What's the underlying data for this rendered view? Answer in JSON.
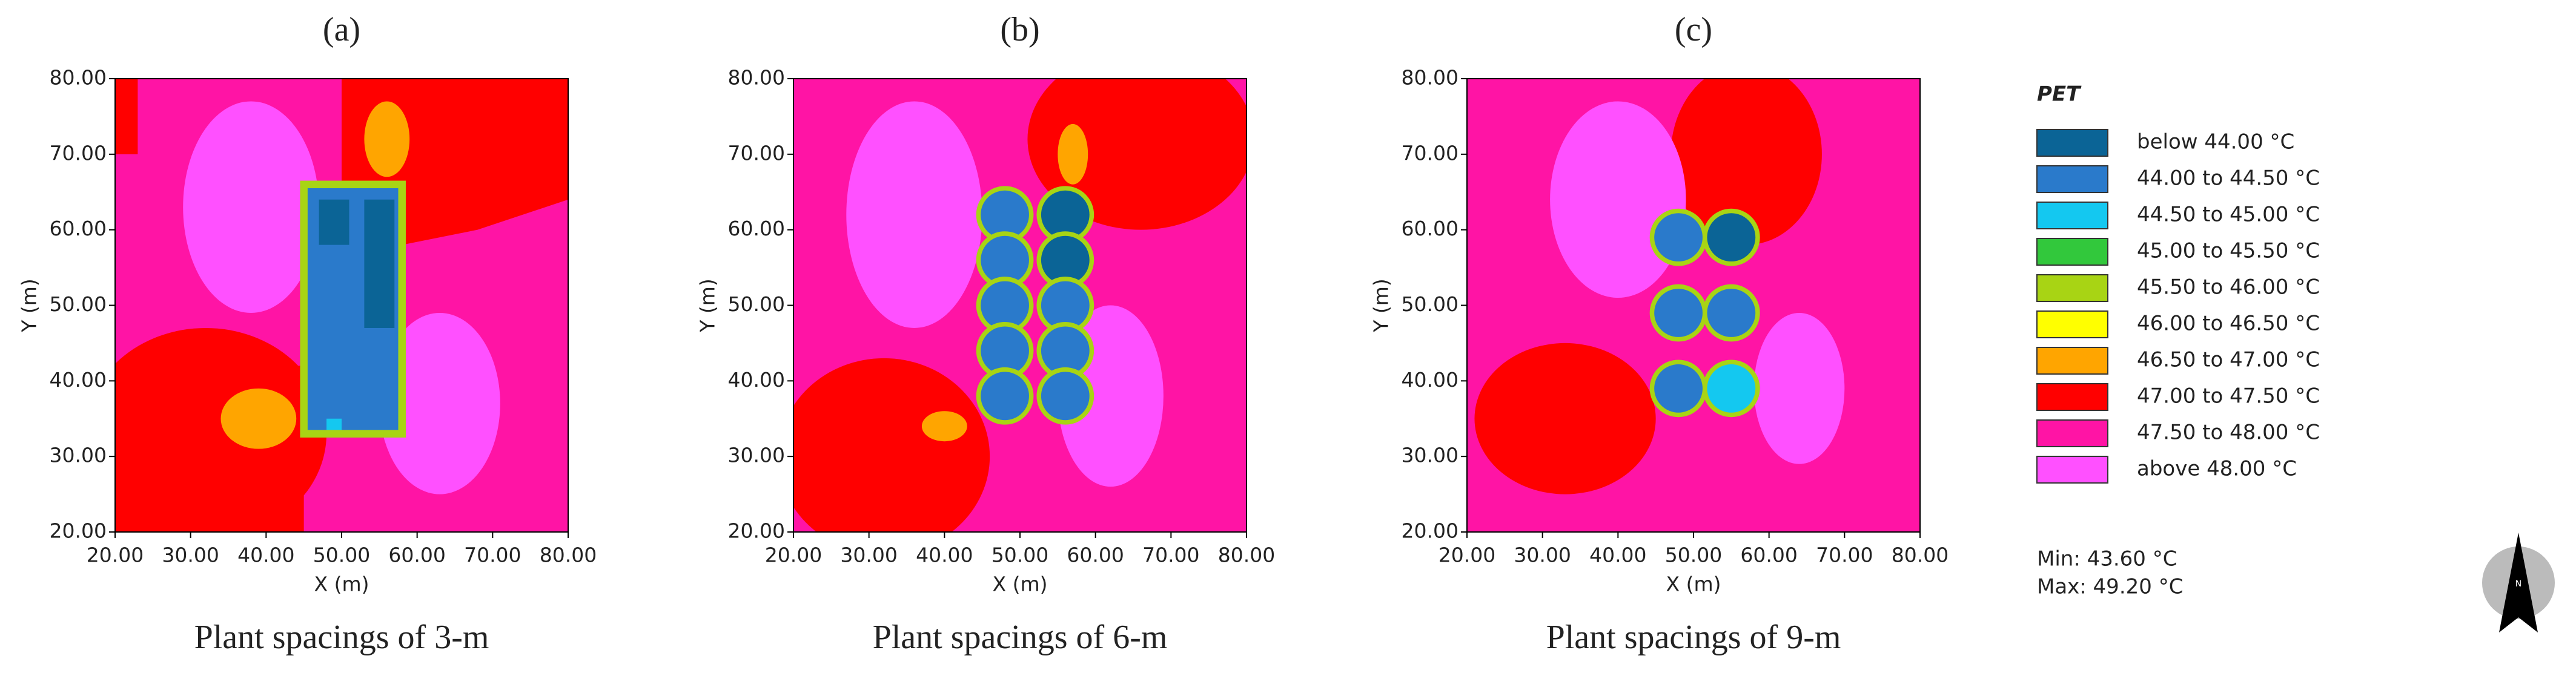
{
  "chart_data": [
    {
      "type": "heatmap",
      "title": "(a)",
      "caption": "Plant spacings of 3-m",
      "x_label": "X (m)",
      "y_label": "Y (m)",
      "xlim": [
        20,
        80
      ],
      "ylim": [
        20,
        80
      ],
      "xticks": [
        {
          "value": 20,
          "label": "20.00"
        },
        {
          "value": 30,
          "label": "30.00"
        },
        {
          "value": 40,
          "label": "40.00"
        },
        {
          "value": 50,
          "label": "50.00"
        },
        {
          "value": 60,
          "label": "60.00"
        },
        {
          "value": 70,
          "label": "70.00"
        },
        {
          "value": 80,
          "label": "80.00"
        }
      ],
      "yticks": [
        {
          "value": 20,
          "label": "20.00"
        },
        {
          "value": 30,
          "label": "30.00"
        },
        {
          "value": 40,
          "label": "40.00"
        },
        {
          "value": 50,
          "label": "50.00"
        },
        {
          "value": 60,
          "label": "60.00"
        },
        {
          "value": 70,
          "label": "70.00"
        },
        {
          "value": 80,
          "label": "80.00"
        }
      ]
    },
    {
      "type": "heatmap",
      "title": "(b)",
      "caption": "Plant spacings of 6-m",
      "x_label": "X (m)",
      "y_label": "Y (m)",
      "xlim": [
        20,
        80
      ],
      "ylim": [
        20,
        80
      ],
      "xticks": [
        {
          "value": 20,
          "label": "20.00"
        },
        {
          "value": 30,
          "label": "30.00"
        },
        {
          "value": 40,
          "label": "40.00"
        },
        {
          "value": 50,
          "label": "50.00"
        },
        {
          "value": 60,
          "label": "60.00"
        },
        {
          "value": 70,
          "label": "70.00"
        },
        {
          "value": 80,
          "label": "80.00"
        }
      ],
      "yticks": [
        {
          "value": 20,
          "label": "20.00"
        },
        {
          "value": 30,
          "label": "30.00"
        },
        {
          "value": 40,
          "label": "40.00"
        },
        {
          "value": 50,
          "label": "50.00"
        },
        {
          "value": 60,
          "label": "60.00"
        },
        {
          "value": 70,
          "label": "70.00"
        },
        {
          "value": 80,
          "label": "80.00"
        }
      ]
    },
    {
      "type": "heatmap",
      "title": "(c)",
      "caption": "Plant spacings of 9-m",
      "x_label": "X (m)",
      "y_label": "Y (m)",
      "xlim": [
        20,
        80
      ],
      "ylim": [
        20,
        80
      ],
      "xticks": [
        {
          "value": 20,
          "label": "20.00"
        },
        {
          "value": 30,
          "label": "30.00"
        },
        {
          "value": 40,
          "label": "40.00"
        },
        {
          "value": 50,
          "label": "50.00"
        },
        {
          "value": 60,
          "label": "60.00"
        },
        {
          "value": 70,
          "label": "70.00"
        },
        {
          "value": 80,
          "label": "80.00"
        }
      ],
      "yticks": [
        {
          "value": 20,
          "label": "20.00"
        },
        {
          "value": 30,
          "label": "30.00"
        },
        {
          "value": 40,
          "label": "40.00"
        },
        {
          "value": 50,
          "label": "50.00"
        },
        {
          "value": 60,
          "label": "60.00"
        },
        {
          "value": 70,
          "label": "70.00"
        },
        {
          "value": 80,
          "label": "80.00"
        }
      ]
    }
  ],
  "legend": {
    "title": "PET",
    "items": [
      {
        "label": "below 44.00 °C",
        "color": "#0b6496"
      },
      {
        "label": "44.00 to 44.50 °C",
        "color": "#2a7acb"
      },
      {
        "label": "44.50 to 45.00 °C",
        "color": "#14c8f0"
      },
      {
        "label": "45.00 to 45.50 °C",
        "color": "#32c83c"
      },
      {
        "label": "45.50 to 46.00 °C",
        "color": "#a8d414"
      },
      {
        "label": "46.00 to 46.50 °C",
        "color": "#ffff00"
      },
      {
        "label": "46.50 to 47.00 °C",
        "color": "#ffa500"
      },
      {
        "label": "47.00 to 47.50 °C",
        "color": "#ff0000"
      },
      {
        "label": "47.50 to 48.00 °C",
        "color": "#ff14a5"
      },
      {
        "label": "above 48.00 °C",
        "color": "#ff50ff"
      }
    ]
  },
  "stats": [
    "Min: 43.60 °C",
    "Max: 49.20 °C"
  ],
  "north_arrow": "N"
}
